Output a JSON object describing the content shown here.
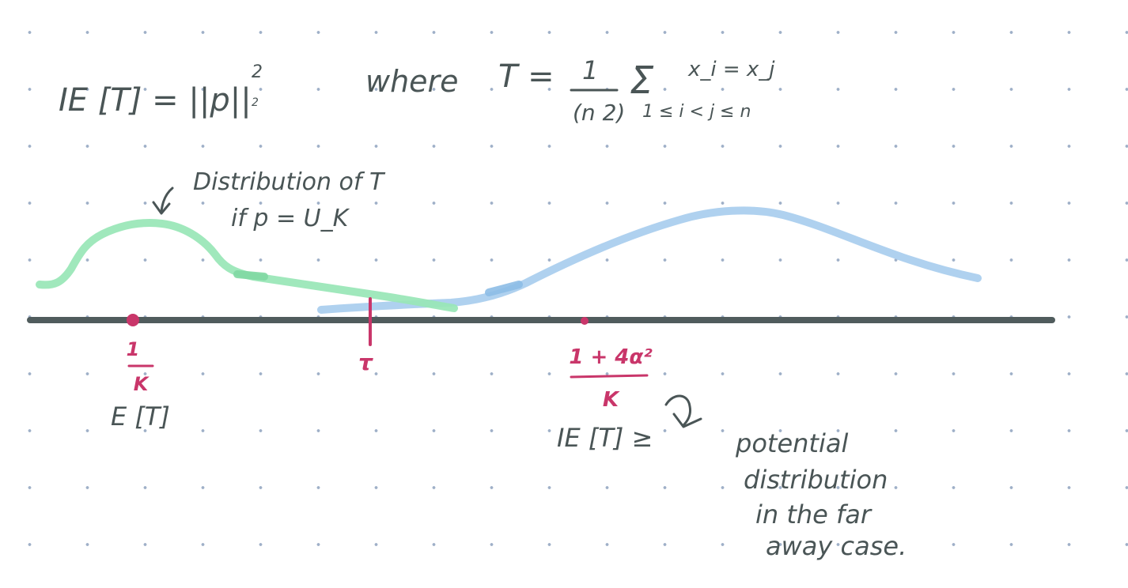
{
  "formula": {
    "lhs": "IE [T] = ||p||",
    "lhs_subscript": "2",
    "lhs_superscript": "2",
    "where_label": "where",
    "T_equals": "T =",
    "numerator": "1",
    "denominator": "(n 2)",
    "sum_symbol": "Σ",
    "summand": "x_i = x_j",
    "sum_range": "1 ≤ i < j ≤ n"
  },
  "annotations": {
    "green_label_line1": "Distribution of T",
    "green_label_line2": "if p = U_K",
    "left_mark_numerator": "1",
    "left_mark_denominator": "K",
    "left_mark_caption": "E [T]",
    "threshold_label": "τ",
    "right_mark_numerator": "1 + 4α²",
    "right_mark_denominator": "K",
    "right_mark_caption": "IE [T] ≥",
    "blue_label_line1": "potential",
    "blue_label_line2": "distribution",
    "blue_label_line3": "in the far",
    "blue_label_line4": "away case."
  },
  "colors": {
    "ink": "#4a5556",
    "axis": "#505c5d",
    "accent_pink": "#c9366a",
    "green_curve": "#98e6b6",
    "blue_curve": "#a8cdee",
    "grid_dot": "#9fb0c8"
  }
}
